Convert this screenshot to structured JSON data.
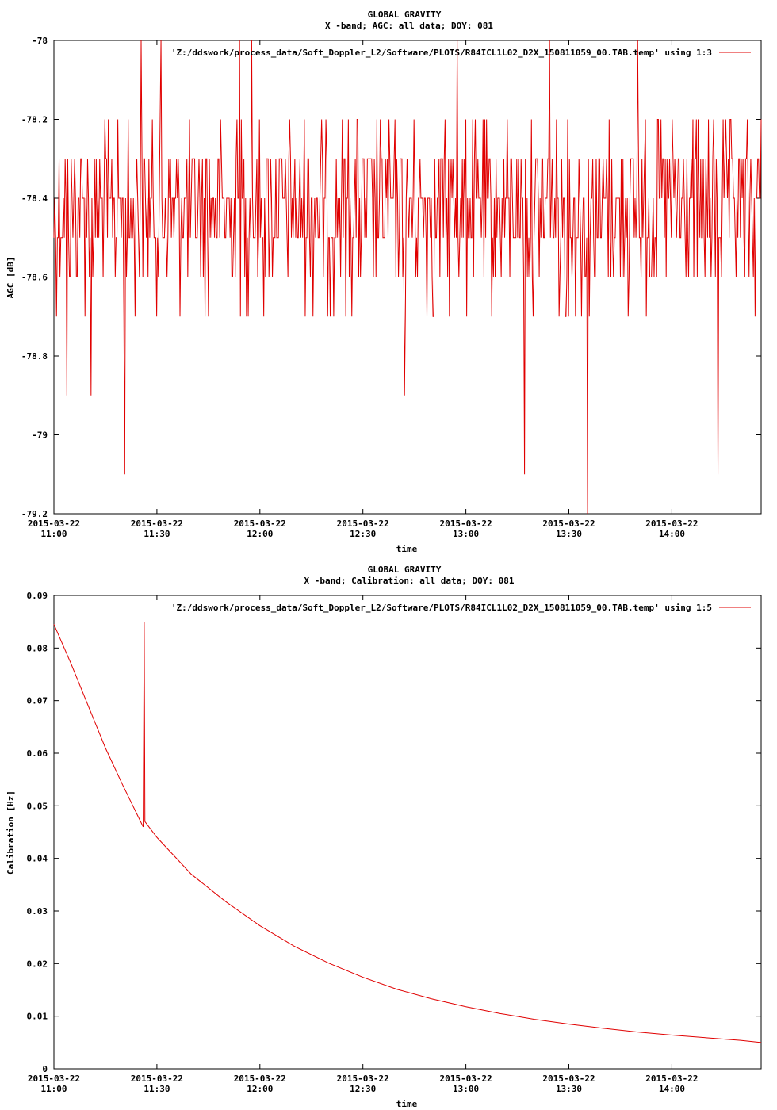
{
  "chart_data": [
    {
      "type": "line",
      "title": "GLOBAL GRAVITY",
      "subtitle": "X -band; AGC: all data; DOY: 081",
      "xlabel": "time",
      "ylabel": "AGC [dB]",
      "ylim": [
        -79.2,
        -78.0
      ],
      "y_ticks": [
        "-78",
        "-78.2",
        "-78.4",
        "-78.6",
        "-78.8",
        "-79",
        "-79.2"
      ],
      "y_tick_values": [
        -78.0,
        -78.2,
        -78.4,
        -78.6,
        -78.8,
        -79.0,
        -79.2
      ],
      "x_range_minutes": [
        0,
        206
      ],
      "x_tick_dates": [
        "2015-03-22",
        "2015-03-22",
        "2015-03-22",
        "2015-03-22",
        "2015-03-22",
        "2015-03-22",
        "2015-03-22"
      ],
      "x_tick_times": [
        "11:00",
        "11:30",
        "12:00",
        "12:30",
        "13:00",
        "13:30",
        "14:00"
      ],
      "x_tick_minutes": [
        0,
        30,
        60,
        90,
        120,
        150,
        180
      ],
      "legend_location": "top-right",
      "series": [
        {
          "name": "'Z:/ddswork/process_data/Soft_Doppler_L2/Software/PLOTS/R84ICL1L02_D2X_150811059_00.TAB.temp' using 1:3",
          "color": "#e00000",
          "samples": 820,
          "baseline_levels": [
            -78.3,
            -78.4,
            -78.5,
            -78.6,
            -78.7
          ],
          "typical_range": [
            -78.7,
            -78.2
          ],
          "spikes": [
            {
              "x": 20.5,
              "y": -79.1
            },
            {
              "x": 3.8,
              "y": -78.9
            },
            {
              "x": 10.9,
              "y": -78.9
            },
            {
              "x": 25.5,
              "y": -78.0
            },
            {
              "x": 31.2,
              "y": -78.0
            },
            {
              "x": 54.0,
              "y": -78.0
            },
            {
              "x": 57.5,
              "y": -78.0
            },
            {
              "x": 102.0,
              "y": -78.9
            },
            {
              "x": 117.4,
              "y": -78.0
            },
            {
              "x": 137.2,
              "y": -79.1
            },
            {
              "x": 144.5,
              "y": -78.0
            },
            {
              "x": 155.5,
              "y": -79.2
            },
            {
              "x": 170.0,
              "y": -78.0
            },
            {
              "x": 193.5,
              "y": -79.1
            }
          ]
        }
      ]
    },
    {
      "type": "line",
      "title": "GLOBAL GRAVITY",
      "subtitle": "X -band; Calibration: all data; DOY: 081",
      "xlabel": "time",
      "ylabel": "Calibration [Hz]",
      "ylim": [
        0,
        0.09
      ],
      "y_ticks": [
        "0.09",
        "0.08",
        "0.07",
        "0.06",
        "0.05",
        "0.04",
        "0.03",
        "0.02",
        "0.01",
        "0"
      ],
      "y_tick_values": [
        0.09,
        0.08,
        0.07,
        0.06,
        0.05,
        0.04,
        0.03,
        0.02,
        0.01,
        0
      ],
      "x_range_minutes": [
        0,
        206
      ],
      "x_tick_dates": [
        "2015-03-22",
        "2015-03-22",
        "2015-03-22",
        "2015-03-22",
        "2015-03-22",
        "2015-03-22",
        "2015-03-22"
      ],
      "x_tick_times": [
        "11:00",
        "11:30",
        "12:00",
        "12:30",
        "13:00",
        "13:30",
        "14:00"
      ],
      "x_tick_minutes": [
        0,
        30,
        60,
        90,
        120,
        150,
        180
      ],
      "legend_location": "top-right",
      "series": [
        {
          "name": "'Z:/ddswork/process_data/Soft_Doppler_L2/Software/PLOTS/R84ICL1L02_D2X_150811059_00.TAB.temp' using 1:5",
          "color": "#e00000",
          "points": [
            [
              0,
              0.0845
            ],
            [
              5,
              0.077
            ],
            [
              10,
              0.069
            ],
            [
              15,
              0.061
            ],
            [
              20,
              0.054
            ],
            [
              26,
              0.046
            ],
            [
              26.3,
              0.085
            ],
            [
              26.5,
              0.047
            ],
            [
              30,
              0.044
            ],
            [
              40,
              0.037
            ],
            [
              50,
              0.0318
            ],
            [
              60,
              0.0272
            ],
            [
              70,
              0.0233
            ],
            [
              80,
              0.0201
            ],
            [
              90,
              0.0174
            ],
            [
              100,
              0.0151
            ],
            [
              110,
              0.0133
            ],
            [
              120,
              0.0118
            ],
            [
              130,
              0.0105
            ],
            [
              140,
              0.0094
            ],
            [
              150,
              0.0085
            ],
            [
              160,
              0.0077
            ],
            [
              170,
              0.007
            ],
            [
              180,
              0.0064
            ],
            [
              190,
              0.0059
            ],
            [
              200,
              0.0054
            ],
            [
              206,
              0.005
            ]
          ]
        }
      ]
    }
  ]
}
